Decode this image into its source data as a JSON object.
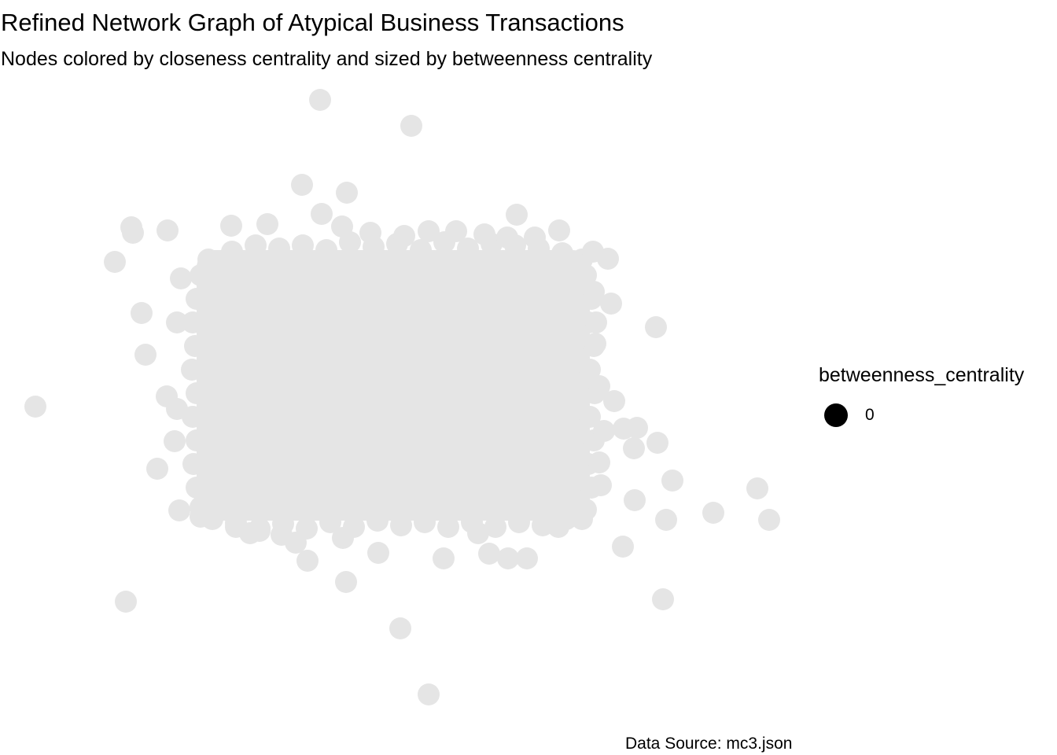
{
  "title": "Refined Network Graph of Atypical Business Transactions",
  "subtitle": "Nodes colored by closeness centrality and sized by betweenness centrality",
  "caption": "Data Source: mc3.json",
  "legend": {
    "title": "betweenness_centrality",
    "items": [
      {
        "label": "0",
        "color": "#000000"
      }
    ]
  },
  "node_color": "#e5e5e5",
  "chart_data": {
    "type": "network",
    "layout": "force-directed",
    "node_encoding": {
      "color": "closeness_centrality",
      "size": "betweenness_centrality"
    },
    "betweenness_centrality_values": [
      0
    ]
  }
}
